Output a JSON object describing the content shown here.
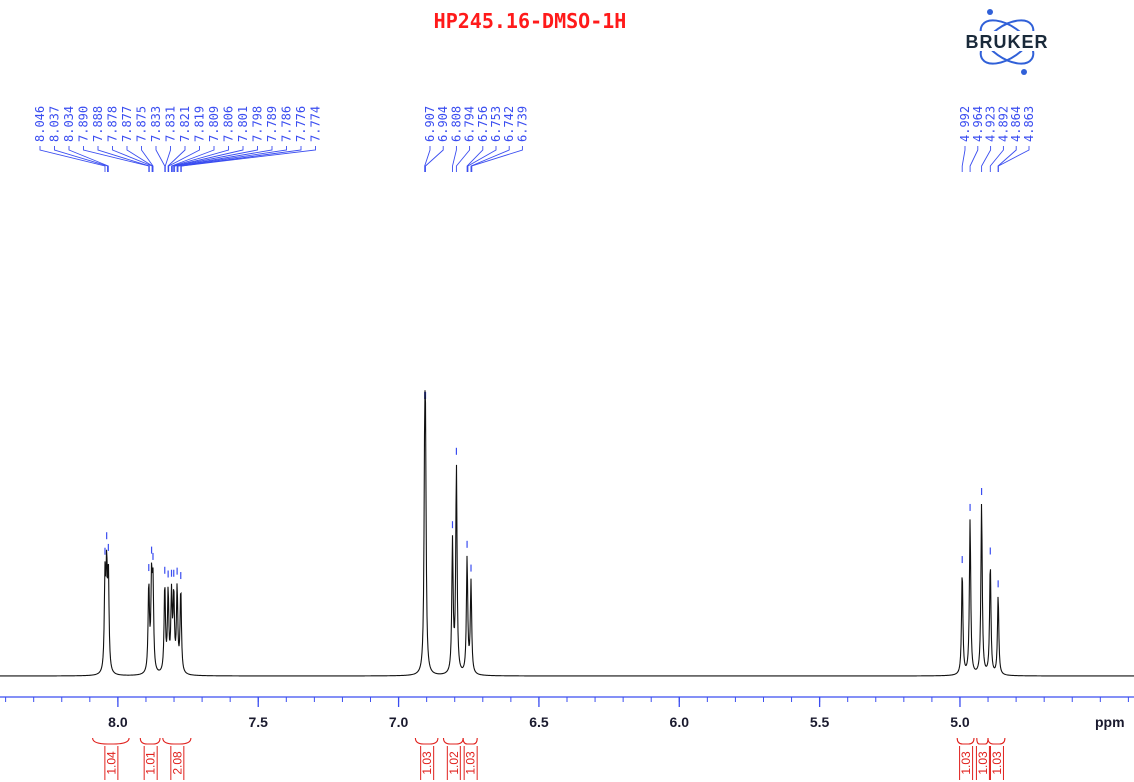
{
  "chart_data": {
    "type": "line",
    "title": "HP245.16-DMSO-1H",
    "xlabel": "ppm",
    "ylabel": "",
    "xlim": [
      8.42,
      4.38
    ],
    "x_reversed": true,
    "grid": false,
    "x_ticks": [
      "8.0",
      "7.5",
      "7.0",
      "6.5",
      "6.0",
      "5.5",
      "5.0"
    ],
    "peak_labels": [
      "8.046",
      "8.037",
      "8.034",
      "7.890",
      "7.888",
      "7.878",
      "7.877",
      "7.875",
      "7.833",
      "7.831",
      "7.821",
      "7.819",
      "7.809",
      "7.806",
      "7.801",
      "7.798",
      "7.789",
      "7.786",
      "7.776",
      "7.774",
      "6.907",
      "6.904",
      "6.808",
      "6.794",
      "6.756",
      "6.753",
      "6.742",
      "6.739",
      "4.992",
      "4.964",
      "4.923",
      "4.892",
      "4.864",
      "4.863"
    ],
    "peaks": [
      {
        "ppm": 8.046,
        "height": 0.23
      },
      {
        "ppm": 8.04,
        "height": 0.24
      },
      {
        "ppm": 8.034,
        "height": 0.24
      },
      {
        "ppm": 7.89,
        "height": 0.22
      },
      {
        "ppm": 7.88,
        "height": 0.22
      },
      {
        "ppm": 7.875,
        "height": 0.21
      },
      {
        "ppm": 7.833,
        "height": 0.22
      },
      {
        "ppm": 7.821,
        "height": 0.2
      },
      {
        "ppm": 7.809,
        "height": 0.19
      },
      {
        "ppm": 7.801,
        "height": 0.19
      },
      {
        "ppm": 7.789,
        "height": 0.21
      },
      {
        "ppm": 7.776,
        "height": 0.21
      },
      {
        "ppm": 6.907,
        "height": 0.46
      },
      {
        "ppm": 6.904,
        "height": 0.46
      },
      {
        "ppm": 6.808,
        "height": 0.33
      },
      {
        "ppm": 6.794,
        "height": 0.52
      },
      {
        "ppm": 6.756,
        "height": 0.29
      },
      {
        "ppm": 6.742,
        "height": 0.23
      },
      {
        "ppm": 4.992,
        "height": 0.26
      },
      {
        "ppm": 4.964,
        "height": 0.39
      },
      {
        "ppm": 4.923,
        "height": 0.43
      },
      {
        "ppm": 4.892,
        "height": 0.28
      },
      {
        "ppm": 4.864,
        "height": 0.2
      }
    ],
    "integrals": [
      {
        "from": 8.09,
        "to": 7.96,
        "value": "1.04"
      },
      {
        "from": 7.92,
        "to": 7.85,
        "value": "1.01"
      },
      {
        "from": 7.84,
        "to": 7.74,
        "value": "2.08"
      },
      {
        "from": 6.94,
        "to": 6.86,
        "value": "1.03"
      },
      {
        "from": 6.84,
        "to": 6.77,
        "value": "1.02"
      },
      {
        "from": 6.77,
        "to": 6.72,
        "value": "1.03"
      },
      {
        "from": 5.01,
        "to": 4.95,
        "value": "1.03"
      },
      {
        "from": 4.94,
        "to": 4.9,
        "value": "1.03"
      },
      {
        "from": 4.9,
        "to": 4.84,
        "value": "1.03"
      }
    ],
    "colors": {
      "spectrum": "#111111",
      "peak_labels": "#3a4df0",
      "axis": "#3a4df0",
      "title": "#ff1a1a",
      "integrals": "#e0201c"
    }
  },
  "logo": {
    "text": "BRUKER"
  }
}
